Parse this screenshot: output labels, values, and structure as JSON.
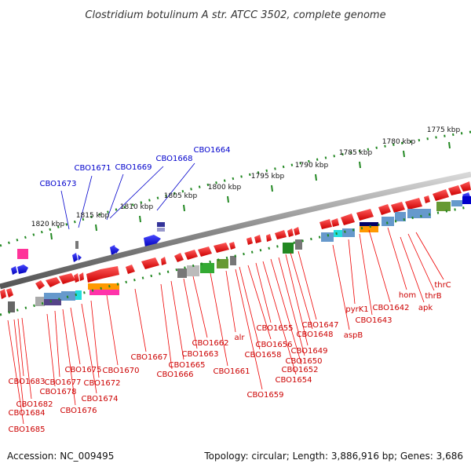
{
  "title": "Clostridium botulinum A str. ATCC 3502, complete genome",
  "footer": {
    "accession": "Accession: NC_009495",
    "summary": "Topology: circular; Length: 3,886,916 bp; Genes: 3,686"
  },
  "colors": {
    "forward_genes": "#0000ee",
    "reverse_genes": "#ee0000",
    "label_forward": "#0000cc",
    "label_reverse": "#cc0000",
    "backbone": "#888888",
    "tick": "#228822"
  },
  "scale_ticks": [
    "1775 kbp",
    "1780 kbp",
    "1785 kbp",
    "1790 kbp",
    "1795 kbp",
    "1800 kbp",
    "1805 kbp",
    "1810 kbp",
    "1815 kbp",
    "1820 kbp"
  ],
  "forward_labels": [
    "CBO1664",
    "CBO1668",
    "CBO1669",
    "CBO1671",
    "CBO1673"
  ],
  "reverse_labels": [
    "thrC",
    "thrB",
    "apk",
    "hom",
    "CBO1642",
    "CBO1643",
    "pyrK1",
    "aspB",
    "CBO1647",
    "CBO1648",
    "CBO1649",
    "CBO1650",
    "CBO1652",
    "CBO1654",
    "CBO1655",
    "CBO1656",
    "CBO1658",
    "CBO1659",
    "alr",
    "CBO1661",
    "CBO1662",
    "CBO1663",
    "CBO1665",
    "CBO1666",
    "CBO1667",
    "CBO1670",
    "CBO1672",
    "CBO1674",
    "CBO1675",
    "CBO1676",
    "CBO1677",
    "CBO1678",
    "CBO1682",
    "CBO1683",
    "CBO1684",
    "CBO1685"
  ]
}
